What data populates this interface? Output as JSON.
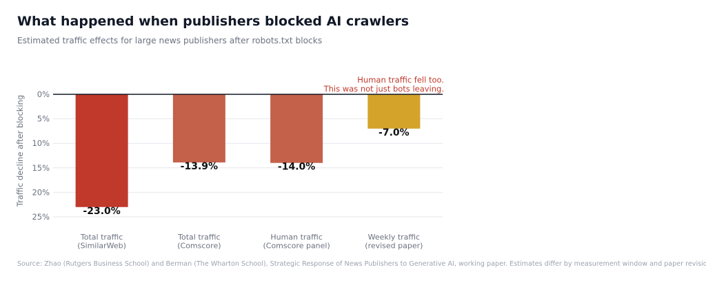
{
  "page": {
    "title": "What happened when publishers blocked AI crawlers",
    "subtitle": "Estimated traffic effects for large news publishers after robots.txt blocks",
    "source": "Source: Zhao (Rutgers Business School) and Berman (The Wharton School), Strategic Response of News Publishers to Generative AI, working paper. Estimates differ by measurement window and paper revision."
  },
  "chart_data": {
    "type": "bar",
    "title": "What happened when publishers blocked AI crawlers",
    "subtitle": "Estimated traffic effects for large news publishers after robots.txt blocks",
    "ylabel": "Traffic decline after blocking",
    "xlabel": "",
    "ylim": [
      0,
      25
    ],
    "y_direction": "inverted (0% at top, decline grows downward)",
    "yticks": [
      {
        "value": 0,
        "label": "0%"
      },
      {
        "value": 5,
        "label": "5%"
      },
      {
        "value": 10,
        "label": "10%"
      },
      {
        "value": 15,
        "label": "15%"
      },
      {
        "value": 20,
        "label": "20%"
      },
      {
        "value": 25,
        "label": "25%"
      }
    ],
    "grid": true,
    "categories": [
      [
        "Total traffic",
        "(SimilarWeb)"
      ],
      [
        "Total traffic",
        "(Comscore)"
      ],
      [
        "Human traffic",
        "(Comscore panel)"
      ],
      [
        "Weekly traffic",
        "(revised paper)"
      ]
    ],
    "values": [
      -23.0,
      -13.9,
      -14.0,
      -7.0
    ],
    "data_labels": [
      "-23.0%",
      "-13.9%",
      "-14.0%",
      "-7.0%"
    ],
    "colors": [
      "#c0392b",
      "#c4614b",
      "#c4614b",
      "#d4a42a"
    ],
    "annotation": {
      "lines": [
        "Human traffic fell too.",
        "This was not just bots leaving."
      ],
      "color": "#c0392b",
      "placement": "top-right"
    },
    "colors_theme": {
      "axis_line": "#111827",
      "grid": "#e5e7eb",
      "tick_text": "#6b7280",
      "value_text": "#111111"
    }
  }
}
